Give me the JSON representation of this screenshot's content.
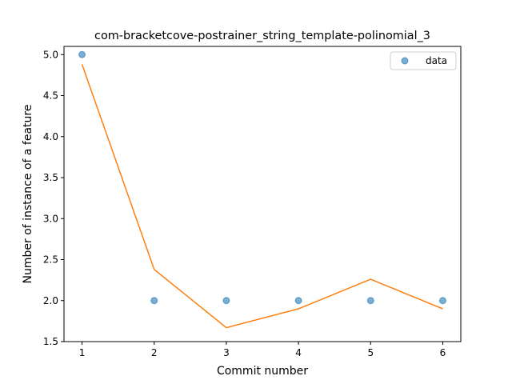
{
  "chart_data": {
    "type": "scatter",
    "title": "com-bracketcove-postrainer_string_template-polinomial_3",
    "xlabel": "Commit number",
    "ylabel": "Number of instance of a feature",
    "xlim": [
      0.75,
      6.25
    ],
    "ylim": [
      1.5,
      5.1
    ],
    "xticks": [
      1,
      2,
      3,
      4,
      5,
      6
    ],
    "yticks": [
      1.5,
      2.0,
      2.5,
      3.0,
      3.5,
      4.0,
      4.5,
      5.0
    ],
    "xtick_labels": [
      "1",
      "2",
      "3",
      "4",
      "5",
      "6"
    ],
    "ytick_labels": [
      "1.5",
      "2.0",
      "2.5",
      "3.0",
      "3.5",
      "4.0",
      "4.5",
      "5.0"
    ],
    "grid": false,
    "legend_position": "top-right",
    "series": [
      {
        "name": "data",
        "kind": "scatter",
        "color": "#1f77b4",
        "x": [
          1,
          2,
          3,
          4,
          5,
          6
        ],
        "y": [
          5.0,
          2.0,
          2.0,
          2.0,
          2.0,
          2.0
        ]
      },
      {
        "kind": "line",
        "color": "#ff7f0e",
        "x": [
          1,
          2,
          3,
          4,
          5,
          6
        ],
        "y": [
          4.88,
          2.38,
          1.67,
          1.9,
          2.26,
          1.9
        ]
      }
    ]
  }
}
